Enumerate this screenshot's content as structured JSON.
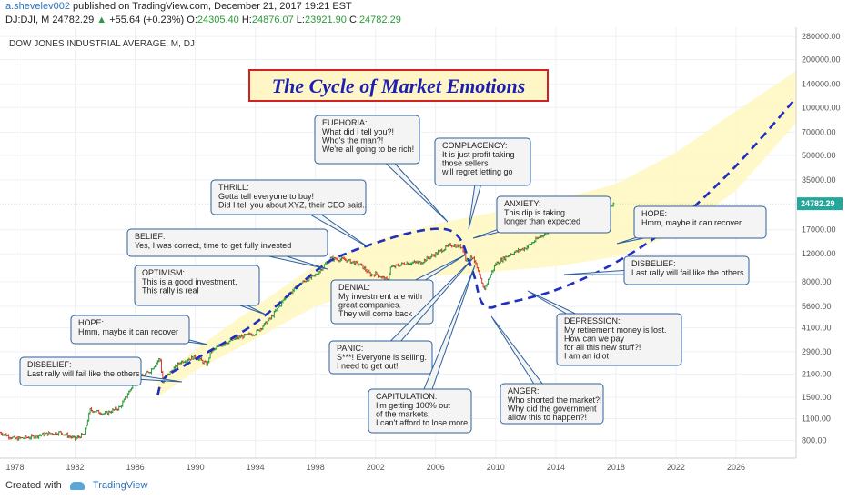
{
  "header": {
    "user": "a.shevelev002",
    "published": "published on TradingView.com, December 21, 2017 19:21 EST",
    "symbol": "DJ:DJI, M",
    "last": "24782.29",
    "change": "+55.64 (+0.23%)",
    "o_label": "O:",
    "o": "24305.40",
    "h_label": "H:",
    "h": "24876.07",
    "l_label": "L:",
    "l": "23921.90",
    "c_label": "C:",
    "c": "24782.29"
  },
  "chart_data": {
    "type": "line",
    "title": "DOW JONES INDUSTRIAL AVERAGE, M, DJ",
    "banner": "The Cycle of Market Emotions",
    "x_ticks": [
      "1978",
      "1982",
      "1986",
      "1990",
      "1994",
      "1998",
      "2002",
      "2006",
      "2010",
      "2014",
      "2018",
      "2022",
      "2026"
    ],
    "y_ticks": [
      "280000.00",
      "200000.00",
      "140000.00",
      "100000.00",
      "70000.00",
      "50000.00",
      "35000.00",
      "24782.29",
      "17000.00",
      "12000.00",
      "8000.00",
      "5600.00",
      "4100.00",
      "2900.00",
      "2100.00",
      "1500.00",
      "1100.00",
      "800.00"
    ],
    "y_scale": "log",
    "xlim": [
      1977,
      2030
    ],
    "ylim": [
      620,
      320000
    ],
    "last_price_label": "24782.29",
    "series": [
      {
        "x": [
          1977,
          1978,
          1979,
          1980,
          1981,
          1982,
          1982.6,
          1983,
          1984,
          1985,
          1986,
          1987,
          1987.65,
          1987.85,
          1988,
          1989,
          1990,
          1990.8,
          1991,
          1992,
          1993,
          1994,
          1995,
          1996,
          1997,
          1998,
          1999,
          2000,
          2001,
          2001.7,
          2002,
          2002.8,
          2003,
          2004,
          2005,
          2006,
          2007,
          2007.8,
          2008,
          2008.5,
          2009,
          2009.2,
          2010,
          2011,
          2012,
          2013,
          2014,
          2015,
          2016,
          2017,
          2017.9
        ],
        "y": [
          900,
          820,
          840,
          880,
          900,
          820,
          880,
          1250,
          1180,
          1300,
          1900,
          2200,
          2650,
          1800,
          2000,
          2500,
          2700,
          2400,
          2900,
          3300,
          3600,
          3800,
          4700,
          6400,
          7800,
          8800,
          11200,
          11000,
          10200,
          8800,
          9000,
          8100,
          9800,
          10500,
          10600,
          12000,
          13700,
          13200,
          11000,
          11500,
          8200,
          7100,
          10400,
          12000,
          13100,
          15500,
          17600,
          17400,
          19500,
          21500,
          24782.29
        ]
      }
    ],
    "cycle_curve": {
      "x": [
        1987.5,
        1988,
        1990,
        1994,
        1998,
        2000,
        2004,
        2006.5,
        2007.6,
        2008.2,
        2008.6,
        2009,
        2009.6,
        2010.5,
        2014,
        2018,
        2022,
        2026,
        2030
      ],
      "y": [
        1550,
        2000,
        2600,
        4400,
        9300,
        12000,
        16000,
        17200,
        15000,
        11000,
        8500,
        6100,
        5500,
        5800,
        7100,
        10600,
        19000,
        43000,
        115000
      ]
    },
    "band": {
      "x": [
        1987.5,
        1990,
        1994,
        1998,
        2002,
        2006,
        2010,
        2014,
        2018,
        2022,
        2026,
        2030
      ],
      "lower": [
        1500,
        2200,
        3500,
        5600,
        7400,
        8700,
        9300,
        10000,
        11500,
        16000,
        30000,
        80000
      ],
      "upper": [
        1900,
        3000,
        5600,
        10200,
        14500,
        18500,
        22000,
        26000,
        33000,
        52000,
        95000,
        170000
      ]
    },
    "callouts": [
      {
        "title": "DISBELIEF:",
        "lines": [
          "Last rally will fail like the others"
        ]
      },
      {
        "title": "HOPE:",
        "lines": [
          "Hmm, maybe it can recover"
        ]
      },
      {
        "title": "OPTIMISM:",
        "lines": [
          "This is a good investment,",
          "This rally is real"
        ]
      },
      {
        "title": "BELIEF:",
        "lines": [
          "Yes, I was correct, time to get fully invested"
        ]
      },
      {
        "title": "THRILL:",
        "lines": [
          "Gotta tell everyone to buy!",
          "Did I tell you about XYZ, their CEO said..."
        ]
      },
      {
        "title": "EUPHORIA:",
        "lines": [
          "What did I tell you?!",
          "Who's the man?!",
          "We're all going to be rich!"
        ]
      },
      {
        "title": "COMPLACENCY:",
        "lines": [
          "It is just profit taking",
          "those sellers",
          "will regret letting go"
        ]
      },
      {
        "title": "ANXIETY:",
        "lines": [
          "This dip is taking",
          "longer than expected"
        ]
      },
      {
        "title": "DENIAL:",
        "lines": [
          "My investment are with",
          "great companies.",
          "They will come back"
        ]
      },
      {
        "title": "PANIC:",
        "lines": [
          "S***! Everyone is selling.",
          "I need to get out!"
        ]
      },
      {
        "title": "CAPITULATION:",
        "lines": [
          "I'm getting 100% out",
          "of the markets.",
          "I can't afford to lose more"
        ]
      },
      {
        "title": "ANGER:",
        "lines": [
          "Who shorted the market?!",
          "Why did the government",
          "allow this to happen?!"
        ]
      },
      {
        "title": "DEPRESSION:",
        "lines": [
          "My retirement money is lost.",
          "How can we pay",
          "for all this new stuff?!",
          "I am an idiot"
        ]
      },
      {
        "title": "DISBELIEF:",
        "lines": [
          "Last rally will fail like the others"
        ]
      },
      {
        "title": "HOPE:",
        "lines": [
          "Hmm, maybe it can recover"
        ]
      }
    ],
    "colors": {
      "up": "#2a9a3a",
      "down": "#d9392b",
      "curve": "#1f2fbf",
      "band": "#fff7c2",
      "callout_border": "#2d5f9c",
      "callout_fill": "#f4f4f4",
      "banner_text": "#1c1fb0",
      "banner_border": "#d32020",
      "banner_fill": "#fff6c8",
      "last_label_bg": "#26a69a"
    }
  },
  "footer": {
    "created": "Created with",
    "brand": "TradingView"
  }
}
